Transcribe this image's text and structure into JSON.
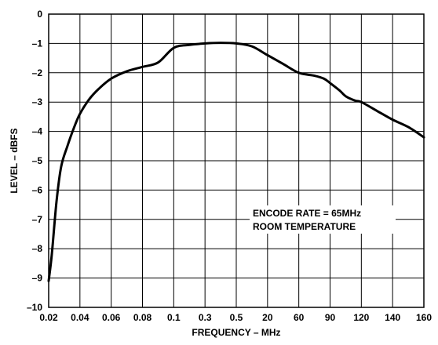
{
  "chart_data": {
    "type": "line",
    "title": "",
    "xlabel": "FREQUENCY – MHz",
    "ylabel": "LEVEL – dBFS",
    "x_tick_labels": [
      "0.02",
      "0.04",
      "0.06",
      "0.08",
      "0.1",
      "0.3",
      "0.5",
      "20",
      "60",
      "90",
      "120",
      "140",
      "160"
    ],
    "y_tick_labels": [
      "0",
      "–1",
      "–2",
      "–3",
      "–4",
      "–5",
      "–6",
      "–7",
      "–8",
      "–9",
      "–10"
    ],
    "ylim": [
      -10,
      0
    ],
    "grid": true,
    "legend": "none",
    "annotation": {
      "line1": "ENCODE RATE = 65MHz",
      "line2": "ROOM TEMPERATURE"
    },
    "series": [
      {
        "x_index": [
          0,
          0.1,
          0.25,
          0.4,
          0.6,
          0.8,
          1.0,
          1.3,
          1.6,
          2.0,
          2.5,
          3.0,
          3.5,
          4.0,
          4.5,
          5.0,
          5.5,
          6.0,
          6.5,
          7.0,
          7.5,
          8.0,
          8.5,
          8.8,
          9.0,
          9.3,
          9.5,
          9.8,
          10.0,
          10.5,
          11.0,
          11.5,
          12.0
        ],
        "values": [
          -9.1,
          -8.2,
          -6.4,
          -5.2,
          -4.5,
          -3.9,
          -3.4,
          -2.9,
          -2.55,
          -2.2,
          -1.95,
          -1.8,
          -1.65,
          -1.15,
          -1.05,
          -1.0,
          -0.98,
          -1.0,
          -1.1,
          -1.4,
          -1.7,
          -2.0,
          -2.1,
          -2.2,
          -2.35,
          -2.6,
          -2.8,
          -2.95,
          -3.0,
          -3.3,
          -3.6,
          -3.85,
          -4.2
        ]
      }
    ],
    "colors": {
      "line": "#000000",
      "grid": "#000000",
      "background": "#ffffff"
    }
  }
}
